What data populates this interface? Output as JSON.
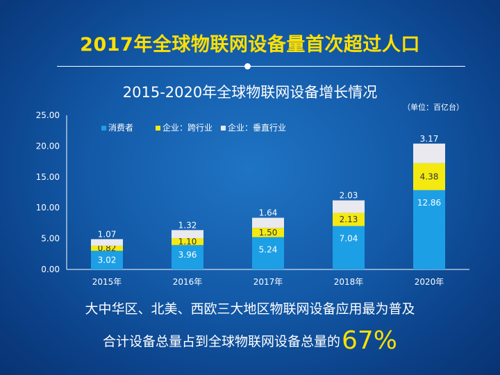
{
  "headline": "2017年全球物联网设备量首次超过人口",
  "footer": {
    "line1": "大中华区、北美、西欧三大地区物联网设备应用最为普及",
    "line2": "合计设备总量占到全球物联网设备总量的",
    "highlight": "67%"
  },
  "colors": {
    "consumer": "#1d9fe6",
    "enterprise_cross": "#f4ea12",
    "enterprise_vertical": "#e9e9ef",
    "headline": "#ffe000",
    "background": "#135aa8"
  },
  "chart_data": {
    "type": "bar",
    "stacked": true,
    "title": "2015-2020年全球物联网设备增长情况",
    "unit_note": "（单位：百亿台）",
    "categories": [
      "2015年",
      "2016年",
      "2017年",
      "2018年",
      "2020年"
    ],
    "series": [
      {
        "name": "消费者",
        "color": "#1d9fe6",
        "values": [
          3.02,
          3.96,
          5.24,
          7.04,
          12.86
        ],
        "labels": [
          "3.02",
          "3.96",
          "5.24",
          "7.04",
          "12.86"
        ]
      },
      {
        "name": "企业：跨行业",
        "color": "#f4ea12",
        "values": [
          0.82,
          1.1,
          1.5,
          2.13,
          4.38
        ],
        "labels": [
          "0.82",
          "1.10",
          "1.50",
          "2.13",
          "4.38"
        ]
      },
      {
        "name": "企业：垂直行业",
        "color": "#e9e9ef",
        "values": [
          1.07,
          1.32,
          1.64,
          2.03,
          3.17
        ],
        "labels": [
          "1.07",
          "1.32",
          "1.64",
          "2.03",
          "3.17"
        ]
      }
    ],
    "ylim": [
      0,
      25
    ],
    "yticks": [
      "0.00",
      "5.00",
      "10.00",
      "15.00",
      "20.00",
      "25.00"
    ],
    "grid": false,
    "legend_position": "top-left"
  }
}
